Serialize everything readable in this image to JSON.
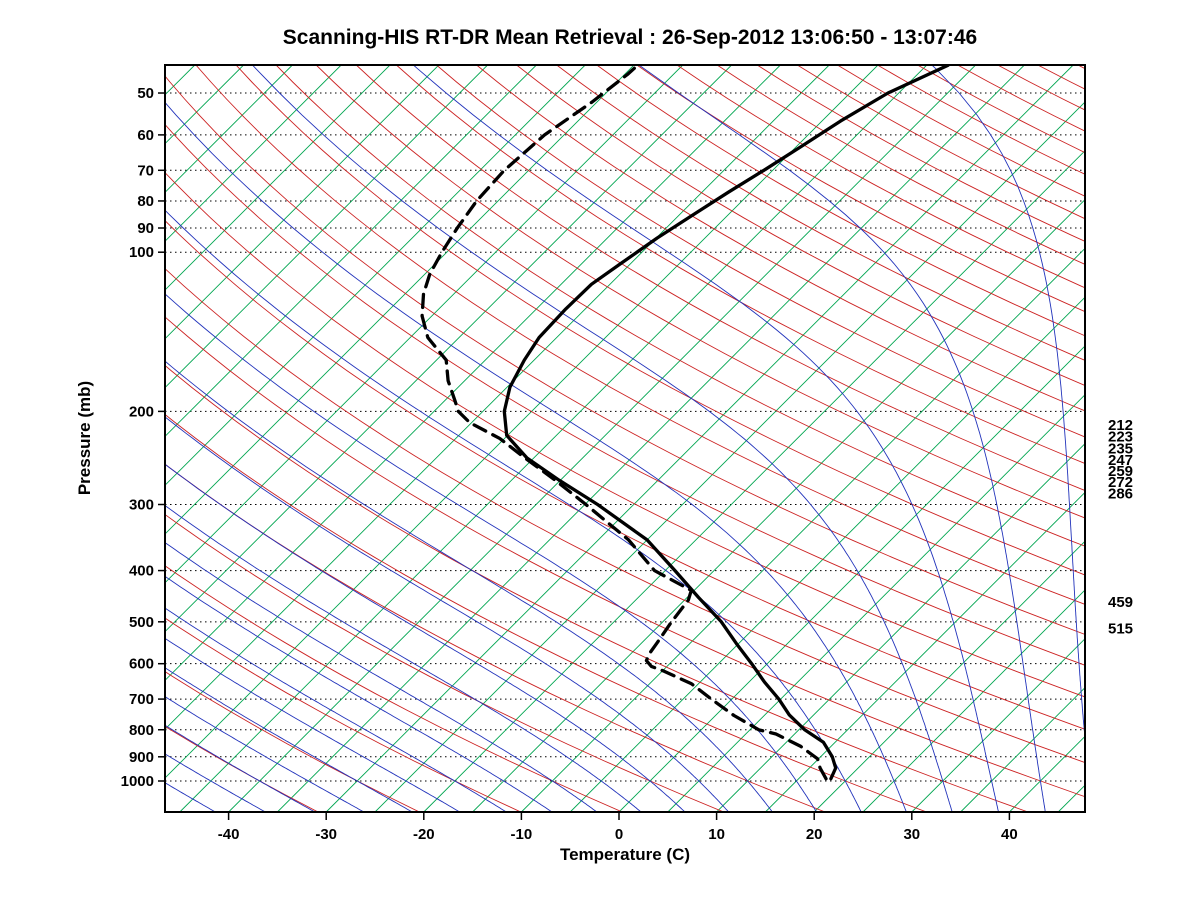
{
  "title": "Scanning-HIS RT-DR Mean Retrieval : 26-Sep-2012 13:06:50 - 13:07:46",
  "chart_data": {
    "type": "line",
    "subtype": "skew-t-log-p-sounding",
    "title": "Scanning-HIS RT-DR Mean Retrieval : 26-Sep-2012 13:06:50 - 13:07:46",
    "xlabel": "Temperature (C)",
    "ylabel": "Pressure (mb)",
    "temperature_axis": {
      "label": "Temperature (C)",
      "ticks": [
        -40,
        -30,
        -20,
        -10,
        0,
        10,
        20,
        30,
        40
      ]
    },
    "pressure_axis": {
      "label": "Pressure (mb)",
      "ticks": [
        50,
        60,
        70,
        80,
        90,
        100,
        200,
        300,
        400,
        500,
        600,
        700,
        800,
        900,
        1000
      ]
    },
    "pressure_range_mb": [
      44.3,
      1144
    ],
    "right_level_labels": [
      212,
      223,
      235,
      247,
      259,
      272,
      286,
      459,
      515
    ],
    "colors": {
      "grid": "#000000",
      "isotherm": "#00A550",
      "dry_adiabat": "#CC2222",
      "moist_adiabat": "#2233BB",
      "temperature_line": "#000000",
      "dewpoint_line": "#000000"
    },
    "background": {
      "isotherm_range": [
        -120,
        45
      ],
      "isotherm_step": 5,
      "dry_adiabat_range": [
        -40,
        330
      ],
      "dry_adiabat_step": 10,
      "moist_adiabat_range": [
        -60,
        45
      ],
      "moist_adiabat_step": 5
    },
    "series": [
      {
        "name": "Temperature",
        "style": "solid",
        "color": "#000000",
        "points": [
          [
            990,
            18.3
          ],
          [
            945,
            17.7
          ],
          [
            900,
            16.2
          ],
          [
            845,
            13.8
          ],
          [
            800,
            10.6
          ],
          [
            750,
            7.5
          ],
          [
            700,
            4.8
          ],
          [
            650,
            1.6
          ],
          [
            600,
            -1.6
          ],
          [
            550,
            -5.2
          ],
          [
            500,
            -9.0
          ],
          [
            450,
            -13.8
          ],
          [
            400,
            -19.0
          ],
          [
            350,
            -25.0
          ],
          [
            300,
            -33.7
          ],
          [
            270,
            -40.1
          ],
          [
            245,
            -45.7
          ],
          [
            222,
            -50.1
          ],
          [
            200,
            -52.8
          ],
          [
            180,
            -54.7
          ],
          [
            160,
            -56.0
          ],
          [
            145,
            -56.8
          ],
          [
            128,
            -57.0
          ],
          [
            115,
            -56.9
          ],
          [
            105,
            -56.0
          ],
          [
            94,
            -54.9
          ],
          [
            85,
            -53.6
          ],
          [
            77,
            -52.3
          ],
          [
            70,
            -50.9
          ],
          [
            63,
            -49.5
          ],
          [
            56.5,
            -48.1
          ],
          [
            50,
            -46.1
          ],
          [
            44.3,
            -42.8
          ]
        ]
      },
      {
        "name": "Dew point",
        "style": "dashed",
        "color": "#000000",
        "points": [
          [
            990,
            17.8
          ],
          [
            945,
            16.1
          ],
          [
            908,
            14.9
          ],
          [
            860,
            11.9
          ],
          [
            815,
            8.1
          ],
          [
            800,
            5.9
          ],
          [
            752,
            1.9
          ],
          [
            700,
            -2.1
          ],
          [
            655,
            -5.7
          ],
          [
            620,
            -9.8
          ],
          [
            607,
            -11.6
          ],
          [
            592,
            -12.7
          ],
          [
            575,
            -13.1
          ],
          [
            550,
            -13.4
          ],
          [
            500,
            -14.1
          ],
          [
            455,
            -14.6
          ],
          [
            436,
            -15.3
          ],
          [
            400,
            -21.1
          ],
          [
            350,
            -26.9
          ],
          [
            300,
            -34.9
          ],
          [
            270,
            -40.5
          ],
          [
            245,
            -45.9
          ],
          [
            225,
            -50.5
          ],
          [
            210,
            -55.2
          ],
          [
            200,
            -57.5
          ],
          [
            190,
            -59.1
          ],
          [
            175,
            -61.7
          ],
          [
            160,
            -64.0
          ],
          [
            145,
            -68.2
          ],
          [
            132,
            -71.0
          ],
          [
            120,
            -73.1
          ],
          [
            110,
            -74.5
          ],
          [
            100,
            -75.5
          ],
          [
            90,
            -76.4
          ],
          [
            80,
            -77.2
          ],
          [
            70,
            -77.5
          ],
          [
            60,
            -77.0
          ],
          [
            52,
            -75.5
          ],
          [
            46,
            -74.7
          ],
          [
            44.3,
            -74.6
          ]
        ]
      }
    ]
  }
}
